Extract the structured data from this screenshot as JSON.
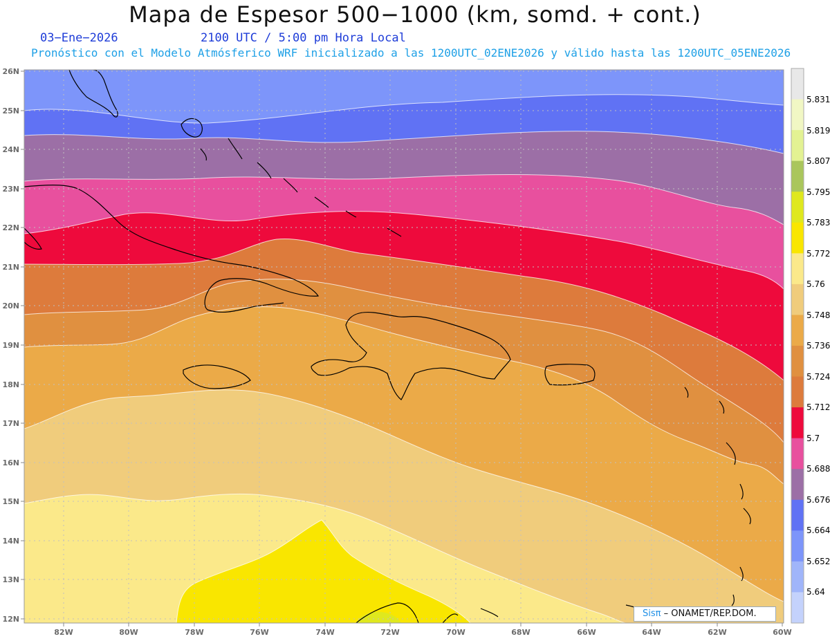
{
  "header": {
    "title": "Mapa de Espesor 500−1000 (km, somd. + cont.)",
    "date": "03−Ene−2026",
    "time": "2100 UTC / 5:00 pm Hora Local",
    "model_line": "Pronóstico con el Modelo Atmósferico WRF inicializado a las 1200UTC_02ENE2026 y válido hasta las  1200UTC_05ENE2026"
  },
  "map": {
    "lat_labels": [
      "26N",
      "25N",
      "24N",
      "23N",
      "22N",
      "21N",
      "20N",
      "19N",
      "18N",
      "17N",
      "16N",
      "15N",
      "14N",
      "13N",
      "12N"
    ],
    "lon_labels": [
      "82W",
      "80W",
      "78W",
      "76W",
      "74W",
      "72W",
      "70W",
      "68W",
      "66W",
      "64W",
      "62W",
      "60W"
    ],
    "lat_range": [
      12,
      26
    ],
    "lon_range": [
      -83.2,
      -60
    ],
    "gridlines": true,
    "field": "thickness 500-1000 hPa (km)"
  },
  "legend": {
    "levels": [
      "5.831",
      "5.819",
      "5.807",
      "5.795",
      "5.783",
      "5.772",
      "5.76",
      "5.748",
      "5.736",
      "5.724",
      "5.712",
      "5.7",
      "5.688",
      "5.676",
      "5.664",
      "5.652",
      "5.64"
    ],
    "colors": [
      "#e8e8e8",
      "#f1f7c4",
      "#e3f293",
      "#aac65c",
      "#dfe81e",
      "#f9e600",
      "#fbe98a",
      "#f0cc7c",
      "#ebaa48",
      "#e09040",
      "#dd7b3c",
      "#ee0a3c",
      "#e8509e",
      "#9c6fa6",
      "#6072f4",
      "#7d95fa",
      "#a0b5fa",
      "#c4d2fc"
    ]
  },
  "credit": {
    "sis": "Sisπ",
    "org": " ONAMET/REP.DOM."
  }
}
